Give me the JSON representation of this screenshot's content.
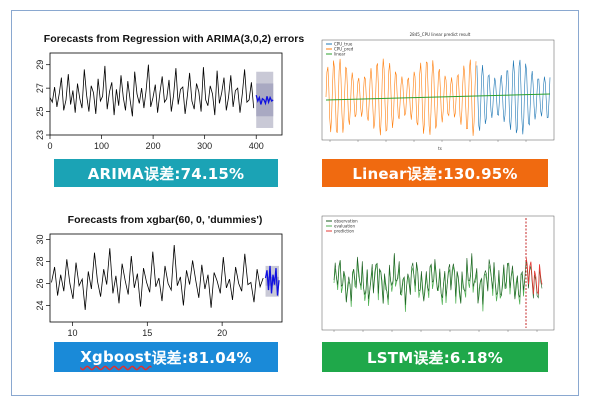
{
  "charts": {
    "arima": {
      "title": "Forecasts from Regression with ARIMA(3,0,2) errors",
      "y_ticks": [
        "23",
        "25",
        "27",
        "29"
      ],
      "x_ticks": [
        "0",
        "100",
        "200",
        "300",
        "400"
      ],
      "banner": "ARIMA误差:74.15%",
      "banner_color": "#1ba3b5"
    },
    "linear": {
      "title": "2845_CPU linear predict result",
      "legend": [
        "CPU_true",
        "CPU_pred",
        "linear"
      ],
      "x_label": "ts",
      "banner": "Linear误差:130.95%",
      "banner_color": "#f06a10"
    },
    "xgbar": {
      "title": "Forecasts from xgbar(60, 0, 'dummies')",
      "y_ticks": [
        "24",
        "26",
        "28",
        "30"
      ],
      "x_ticks": [
        "10",
        "15",
        "20"
      ],
      "banner_prefix": "Xgboost",
      "banner_suffix": "误差:81.04%",
      "banner_color": "#1a8ad8"
    },
    "lstm": {
      "legend": [
        "observation",
        "evaluation",
        "prediction"
      ],
      "banner": "LSTM误差:6.18%",
      "banner_color": "#1fa84a"
    }
  },
  "chart_data": [
    {
      "type": "line",
      "title": "Forecasts from Regression with ARIMA(3,0,2) errors",
      "xlim": [
        0,
        450
      ],
      "ylim": [
        23,
        30
      ],
      "series": [
        {
          "values": [
            26.2,
            25.8,
            27.1,
            25.4,
            26.5,
            27.9,
            25.1,
            26.0,
            28.2,
            25.6,
            26.8,
            24.9,
            27.4,
            26.1,
            25.3,
            28.6,
            26.4,
            25.0,
            27.2,
            26.6,
            24.8,
            27.8,
            25.9,
            26.3,
            28.9,
            25.2,
            26.7,
            27.5,
            24.7,
            26.9,
            25.5,
            28.1,
            26.2,
            25.1,
            27.6,
            26.0,
            24.6,
            28.4,
            26.5,
            25.7,
            27.0,
            25.3,
            26.8,
            29.0,
            25.4,
            26.2,
            27.3,
            24.9,
            26.6,
            28.0,
            25.8,
            26.1,
            27.7,
            25.0,
            26.4,
            28.7,
            25.6,
            26.9,
            27.1,
            24.8,
            26.3,
            28.3,
            25.9,
            25.2,
            27.4,
            26.7,
            25.0,
            28.8,
            26.0,
            25.5,
            27.2,
            26.5,
            24.7,
            28.5,
            25.7,
            26.6,
            27.9,
            25.1,
            26.2,
            28.1,
            25.4,
            26.8,
            27.0,
            24.9,
            26.5,
            28.6,
            25.8,
            26.0,
            27.5,
            25.3
          ],
          "x_start": 0,
          "x_step": 4.44
        },
        {
          "values": [
            26.4,
            25.9,
            26.2,
            25.6,
            26.1,
            26.0,
            25.7,
            26.3,
            25.8,
            26.2,
            25.9,
            26.0
          ],
          "x_start": 400,
          "x_step": 3
        }
      ]
    },
    {
      "type": "line",
      "title": "2845_CPU linear predict result",
      "legend": [
        "CPU_true",
        "CPU_pred",
        "linear"
      ]
    },
    {
      "type": "line",
      "title": "Forecasts from xgbar(60, 0, 'dummies')",
      "xlim": [
        8.5,
        24
      ],
      "ylim": [
        22.5,
        30.5
      ],
      "series": [
        {
          "values": [
            26.1,
            27.5,
            24.9,
            26.8,
            25.3,
            28.2,
            26.0,
            24.6,
            27.9,
            25.8,
            26.4,
            23.6,
            27.1,
            25.5,
            28.8,
            26.2,
            24.8,
            27.3,
            25.9,
            29.2,
            25.1,
            26.7,
            24.2,
            27.8,
            26.3,
            25.0,
            28.5,
            25.6,
            26.9,
            23.9,
            27.4,
            26.1,
            25.2,
            28.9,
            25.7,
            26.5,
            24.4,
            27.6,
            26.0,
            25.4,
            29.5,
            25.8,
            26.6,
            24.0,
            27.2,
            25.9,
            28.1,
            26.3,
            24.7,
            27.7,
            25.5,
            26.8,
            23.8,
            27.0,
            26.2,
            25.1,
            28.4,
            25.6,
            26.4,
            24.5,
            27.5,
            26.0,
            25.3,
            28.7,
            25.9,
            26.1,
            24.3,
            27.3,
            25.7,
            26.5
          ],
          "x_start": 8.6,
          "x_step": 0.205
        },
        {
          "values": [
            26.5,
            27.2,
            25.4,
            27.6,
            25.1,
            26.8,
            25.9,
            27.4,
            24.9,
            26.3
          ],
          "x_start": 22.9,
          "x_step": 0.1
        }
      ]
    },
    {
      "type": "line",
      "legend": [
        "observation",
        "evaluation",
        "prediction"
      ]
    }
  ]
}
